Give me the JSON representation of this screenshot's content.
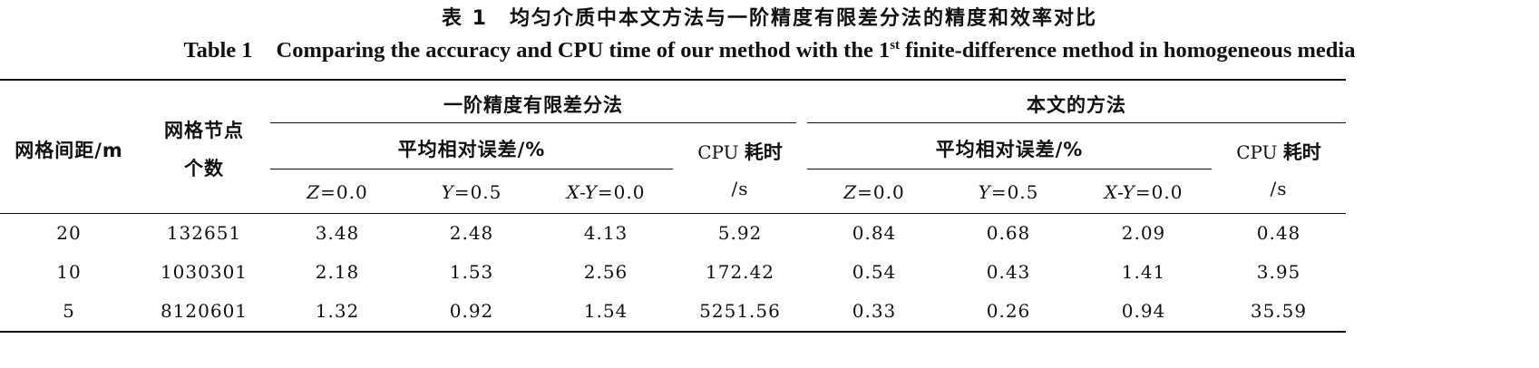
{
  "caption": {
    "cn": "表 1　均匀介质中本文方法与一阶精度有限差分法的精度和效率对比",
    "en_label": "Table 1",
    "en_text_before_sup": "Comparing the accuracy and CPU time of our method with the 1",
    "en_sup": "st",
    "en_text_after_sup": " finite-difference method in homogeneous media"
  },
  "header": {
    "grid_spacing": "网格间距/m",
    "node_count_line1": "网格节点",
    "node_count_line2": "个数",
    "group_fd": "一阶精度有限差分法",
    "group_ours": "本文的方法",
    "avg_rel_error": "平均相对误差/%",
    "cpu_latin": "CPU ",
    "cpu_han": "耗时",
    "cpu_unit": "/s",
    "z_var": "Z",
    "z_val": "=0.0",
    "y_var": "Y",
    "y_val": "=0.5",
    "xy_var": "X-Y",
    "xy_val": "=0.0"
  },
  "rows": [
    [
      "20",
      "132651",
      "3.48",
      "2.48",
      "4.13",
      "5.92",
      "0.84",
      "0.68",
      "2.09",
      "0.48"
    ],
    [
      "10",
      "1030301",
      "2.18",
      "1.53",
      "2.56",
      "172.42",
      "0.54",
      "0.43",
      "1.41",
      "3.95"
    ],
    [
      "5",
      "8120601",
      "1.32",
      "0.92",
      "1.54",
      "5251.56",
      "0.33",
      "0.26",
      "0.94",
      "35.59"
    ]
  ]
}
